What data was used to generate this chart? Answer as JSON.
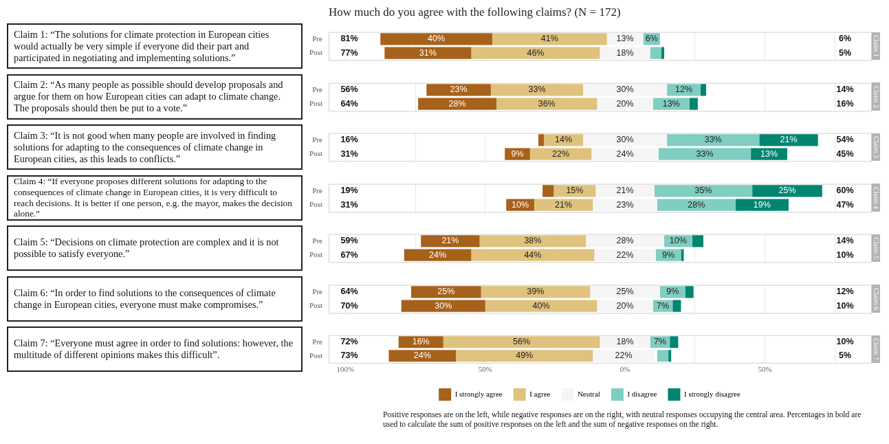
{
  "chart_data": [
    {
      "type": "bar",
      "title": "How much do you agree with the following claims? (N = 172)",
      "ylabel": "Claim 1: “The solutions for climate protection in European cities would actually be very simple if everyone did their part and participated in negotiating and implementing solutions.”",
      "y2label": "Claim 1",
      "orientation": "horizontal",
      "categories": [
        "Pre",
        "Post"
      ],
      "xlim": [
        -106,
        88
      ],
      "xticks": [
        -100,
        -75,
        -50,
        -25,
        0,
        25,
        50,
        75
      ],
      "grid": "x",
      "tick_labels": "y",
      "series": [
        {
          "color": "#a6611a",
          "base": [
            -87.5,
            -86
          ],
          "values": [
            40,
            31
          ],
          "value_labels": [
            "40%",
            "31%"
          ]
        },
        {
          "color": "#dfc27d",
          "base": [
            -47.5,
            -55
          ],
          "values": [
            41,
            46
          ],
          "value_labels": [
            "41%",
            "46%"
          ]
        },
        {
          "color": "#f5f5f5",
          "base": [
            -6.5,
            -9
          ],
          "values": [
            13,
            18
          ],
          "value_labels": [
            "13%",
            "18%"
          ]
        },
        {
          "color": "#80cdc1",
          "base": [
            6.5,
            9
          ],
          "values": [
            6,
            4
          ],
          "value_labels": [
            "6%",
            null
          ]
        },
        {
          "color": "#018571",
          "base": [
            null,
            13
          ],
          "values": [
            null,
            1
          ],
          "value_labels": [
            null,
            null
          ]
        }
      ],
      "annotations": [
        "81%",
        "77%",
        "6%",
        "5%"
      ]
    },
    {
      "type": "bar",
      "ylabel": "Claim 2: “As many people as possible should develop proposals and argue for them on how European cities can adapt to climate change. The proposals should then be put to a vote.”",
      "y2label": "Claim 2",
      "orientation": "horizontal",
      "categories": [
        "Pre",
        "Post"
      ],
      "xlim": [
        -106,
        88
      ],
      "xticks": [
        -100,
        -75,
        -50,
        -25,
        0,
        25,
        50,
        75
      ],
      "grid": "x",
      "tick_labels": "y",
      "series": [
        {
          "color": "#a6611a",
          "base": [
            -71,
            -74
          ],
          "values": [
            23,
            28
          ],
          "value_labels": [
            "23%",
            "28%"
          ]
        },
        {
          "color": "#dfc27d",
          "base": [
            -48,
            -46
          ],
          "values": [
            33,
            36
          ],
          "value_labels": [
            "33%",
            "36%"
          ]
        },
        {
          "color": "#f5f5f5",
          "base": [
            -15,
            -10
          ],
          "values": [
            30,
            20
          ],
          "value_labels": [
            "30%",
            "20%"
          ]
        },
        {
          "color": "#80cdc1",
          "base": [
            15,
            10
          ],
          "values": [
            12,
            13
          ],
          "value_labels": [
            "12%",
            "13%"
          ]
        },
        {
          "color": "#018571",
          "base": [
            27,
            23
          ],
          "values": [
            2,
            3
          ],
          "value_labels": [
            null,
            null
          ]
        }
      ],
      "annotations": [
        "56%",
        "64%",
        "14%",
        "16%"
      ]
    },
    {
      "type": "bar",
      "ylabel": "Claim 3: “It is not good when many people are involved in finding solutions for adapting to the consequences of climate change in European cities, as this leads to conflicts.”",
      "y2label": "Claim 3",
      "orientation": "horizontal",
      "categories": [
        "Pre",
        "Post"
      ],
      "xlim": [
        -106,
        88
      ],
      "xticks": [
        -100,
        -75,
        -50,
        -25,
        0,
        25,
        50,
        75
      ],
      "grid": "x",
      "tick_labels": "y",
      "series": [
        {
          "color": "#a6611a",
          "base": [
            -31,
            -43
          ],
          "values": [
            2,
            9
          ],
          "value_labels": [
            null,
            "9%"
          ]
        },
        {
          "color": "#dfc27d",
          "base": [
            -29,
            -34
          ],
          "values": [
            14,
            22
          ],
          "value_labels": [
            "14%",
            "22%"
          ]
        },
        {
          "color": "#f5f5f5",
          "base": [
            -15,
            -12
          ],
          "values": [
            30,
            24
          ],
          "value_labels": [
            "30%",
            "24%"
          ]
        },
        {
          "color": "#80cdc1",
          "base": [
            15,
            12
          ],
          "values": [
            33,
            33
          ],
          "value_labels": [
            "33%",
            "33%"
          ]
        },
        {
          "color": "#018571",
          "base": [
            48,
            45
          ],
          "values": [
            21,
            13
          ],
          "value_labels": [
            "21%",
            "13%"
          ]
        }
      ],
      "annotations": [
        "16%",
        "31%",
        "54%",
        "45%"
      ]
    },
    {
      "type": "bar",
      "ylabel": "Claim 4: “If everyone proposes different solutions for adapting to the consequences of climate change in European cities, it is very difficult to reach decisions. It is better if one person, e.g. the mayor, makes the decision alone.”",
      "y2label": "Claim 4",
      "orientation": "horizontal",
      "categories": [
        "Pre",
        "Post"
      ],
      "xlim": [
        -106,
        88
      ],
      "xticks": [
        -100,
        -75,
        -50,
        -25,
        0,
        25,
        50,
        75
      ],
      "grid": "x",
      "tick_labels": "y",
      "series": [
        {
          "color": "#a6611a",
          "base": [
            -29.5,
            -42.5
          ],
          "values": [
            4,
            10
          ],
          "value_labels": [
            null,
            "10%"
          ]
        },
        {
          "color": "#dfc27d",
          "base": [
            -25.5,
            -32.5
          ],
          "values": [
            15,
            21
          ],
          "value_labels": [
            "15%",
            "21%"
          ]
        },
        {
          "color": "#f5f5f5",
          "base": [
            -10.5,
            -11.5
          ],
          "values": [
            21,
            23
          ],
          "value_labels": [
            "21%",
            "23%"
          ]
        },
        {
          "color": "#80cdc1",
          "base": [
            10.5,
            11.5
          ],
          "values": [
            35,
            28
          ],
          "value_labels": [
            "35%",
            "28%"
          ]
        },
        {
          "color": "#018571",
          "base": [
            45.5,
            39.5
          ],
          "values": [
            25,
            19
          ],
          "value_labels": [
            "25%",
            "19%"
          ]
        }
      ],
      "annotations": [
        "19%",
        "31%",
        "60%",
        "47%"
      ]
    },
    {
      "type": "bar",
      "ylabel": "Claim 5: “Decisions on climate protection are complex and it is not possible to satisfy everyone.”",
      "y2label": "Claim 5",
      "orientation": "horizontal",
      "categories": [
        "Pre",
        "Post"
      ],
      "xlim": [
        -106,
        88
      ],
      "xticks": [
        -100,
        -75,
        -50,
        -25,
        0,
        25,
        50,
        75
      ],
      "grid": "x",
      "tick_labels": "y",
      "series": [
        {
          "color": "#a6611a",
          "base": [
            -73,
            -79
          ],
          "values": [
            21,
            24
          ],
          "value_labels": [
            "21%",
            "24%"
          ]
        },
        {
          "color": "#dfc27d",
          "base": [
            -52,
            -55
          ],
          "values": [
            38,
            44
          ],
          "value_labels": [
            "38%",
            "44%"
          ]
        },
        {
          "color": "#f5f5f5",
          "base": [
            -14,
            -11
          ],
          "values": [
            28,
            22
          ],
          "value_labels": [
            "28%",
            "22%"
          ]
        },
        {
          "color": "#80cdc1",
          "base": [
            14,
            11
          ],
          "values": [
            10,
            9
          ],
          "value_labels": [
            "10%",
            "9%"
          ]
        },
        {
          "color": "#018571",
          "base": [
            24,
            20
          ],
          "values": [
            4,
            1
          ],
          "value_labels": [
            null,
            null
          ]
        }
      ],
      "annotations": [
        "59%",
        "67%",
        "14%",
        "10%"
      ]
    },
    {
      "type": "bar",
      "ylabel": "Claim 6: “In order to find solutions to the consequences of climate change in European cities, everyone must make compromises.”",
      "y2label": "Claim 6",
      "orientation": "horizontal",
      "categories": [
        "Pre",
        "Post"
      ],
      "xlim": [
        -106,
        88
      ],
      "xticks": [
        -100,
        -75,
        -50,
        -25,
        0,
        25,
        50,
        75
      ],
      "grid": "x",
      "tick_labels": "y",
      "series": [
        {
          "color": "#a6611a",
          "base": [
            -76.5,
            -80
          ],
          "values": [
            25,
            30
          ],
          "value_labels": [
            "25%",
            "30%"
          ]
        },
        {
          "color": "#dfc27d",
          "base": [
            -51.5,
            -50
          ],
          "values": [
            39,
            40
          ],
          "value_labels": [
            "39%",
            "40%"
          ]
        },
        {
          "color": "#f5f5f5",
          "base": [
            -12.5,
            -10
          ],
          "values": [
            25,
            20
          ],
          "value_labels": [
            "25%",
            "20%"
          ]
        },
        {
          "color": "#80cdc1",
          "base": [
            12.5,
            10
          ],
          "values": [
            9,
            7
          ],
          "value_labels": [
            "9%",
            "7%"
          ]
        },
        {
          "color": "#018571",
          "base": [
            21.5,
            17
          ],
          "values": [
            3,
            3
          ],
          "value_labels": [
            null,
            null
          ]
        }
      ],
      "annotations": [
        "64%",
        "70%",
        "12%",
        "10%"
      ]
    },
    {
      "type": "bar",
      "ylabel": "Claim 7: “Everyone must agree in order to find solutions: however, the multitude of different opinions makes this difficult”.",
      "y2label": "Claim 7",
      "orientation": "horizontal",
      "categories": [
        "Pre",
        "Post"
      ],
      "xlim": [
        -106,
        88
      ],
      "xticks": [
        {
          "value": -100,
          "label": "100%"
        },
        {
          "value": -75,
          "label": null
        },
        {
          "value": -50,
          "label": "50%"
        },
        {
          "value": -25,
          "label": null
        },
        {
          "value": 0,
          "label": "0%"
        },
        {
          "value": 25,
          "label": null
        },
        {
          "value": 50,
          "label": "50%"
        },
        {
          "value": 75,
          "label": null
        }
      ],
      "grid": "x",
      "legend": "bottom",
      "series": [
        {
          "name": "I strongly agree",
          "color": "#a6611a",
          "base": [
            -81,
            -84.5
          ],
          "values": [
            16,
            24
          ],
          "value_labels": [
            "16%",
            "24%"
          ]
        },
        {
          "name": "I agree",
          "color": "#dfc27d",
          "base": [
            -65,
            -60.5
          ],
          "values": [
            56,
            49
          ],
          "value_labels": [
            "56%",
            "49%"
          ]
        },
        {
          "name": "Neutral",
          "color": "#f5f5f5",
          "base": [
            -9,
            -11.5
          ],
          "values": [
            18,
            22
          ],
          "value_labels": [
            "18%",
            "22%"
          ]
        },
        {
          "name": "I disagree",
          "color": "#80cdc1",
          "base": [
            9,
            11.5
          ],
          "values": [
            7,
            4
          ],
          "value_labels": [
            "7%",
            null
          ]
        },
        {
          "name": "I strongly disagree",
          "color": "#018571",
          "base": [
            16,
            15.5
          ],
          "values": [
            3,
            1
          ],
          "value_labels": [
            null,
            null
          ]
        }
      ],
      "annotations": [
        "72%",
        "73%",
        "10%",
        "5%",
        "Positive responses are on the left, while negative responses are on the right, with neutral responses occupying the central area. Percentages in bold are used to calculate the sum of positive responses on the left and the sum of negative responses on the right."
      ]
    }
  ]
}
